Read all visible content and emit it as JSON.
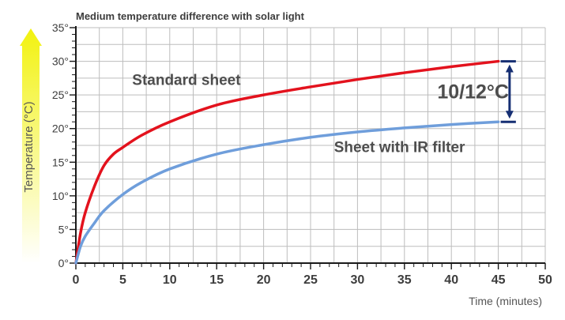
{
  "colors": {
    "standard_series": "#e3121d",
    "ir_series": "#6f9edb",
    "grid": "#bdbdbd",
    "axis": "#1a1a1a",
    "tick_text": "#3d3d3d",
    "annotation_text": "#4d4d4d",
    "difference_arrow": "#162f73",
    "gradient_top": "#f2f20f",
    "gradient_bottom": "#ffffff"
  },
  "chart_data": {
    "type": "line",
    "title": "Medium  temperature difference with solar light",
    "xlabel": "Time (minutes)",
    "ylabel": "Temperature (°C)",
    "xlim": [
      0,
      50
    ],
    "ylim": [
      0,
      35
    ],
    "grid": true,
    "x_ticks": [
      {
        "value": 0,
        "label": "0"
      },
      {
        "value": 5,
        "label": "5"
      },
      {
        "value": 10,
        "label": "10"
      },
      {
        "value": 15,
        "label": "15"
      },
      {
        "value": 20,
        "label": "20"
      },
      {
        "value": 25,
        "label": "25"
      },
      {
        "value": 30,
        "label": "30"
      },
      {
        "value": 35,
        "label": "35"
      },
      {
        "value": 40,
        "label": "40"
      },
      {
        "value": 45,
        "label": "45"
      },
      {
        "value": 50,
        "label": "50"
      }
    ],
    "y_ticks": [
      {
        "value": 0,
        "label": "0°"
      },
      {
        "value": 5,
        "label": "5°"
      },
      {
        "value": 10,
        "label": "10°"
      },
      {
        "value": 15,
        "label": "15°"
      },
      {
        "value": 20,
        "label": "20°"
      },
      {
        "value": 25,
        "label": "25°"
      },
      {
        "value": 30,
        "label": "30°"
      },
      {
        "value": 35,
        "label": "35°"
      }
    ],
    "series": [
      {
        "name": "Standard sheet",
        "color": "#e3121d",
        "x": [
          0,
          0.5,
          1,
          2,
          3,
          4,
          5,
          7,
          10,
          15,
          20,
          25,
          30,
          35,
          40,
          45
        ],
        "y": [
          0,
          4.5,
          7.5,
          11.5,
          14.5,
          16.2,
          17.2,
          19,
          21,
          23.5,
          25,
          26.2,
          27.3,
          28.3,
          29.2,
          30
        ]
      },
      {
        "name": "Sheet with IR filter",
        "color": "#6f9edb",
        "x": [
          0,
          0.5,
          1,
          2,
          3,
          5,
          7,
          10,
          15,
          20,
          25,
          30,
          35,
          40,
          45
        ],
        "y": [
          0,
          2.5,
          4,
          6,
          7.8,
          10.2,
          12,
          14,
          16.2,
          17.6,
          18.7,
          19.5,
          20.1,
          20.6,
          21
        ]
      }
    ],
    "annotations": [
      {
        "text": "Standard sheet",
        "x": 6,
        "y": 26.5,
        "color": "#4d4d4d"
      },
      {
        "text": "Sheet with IR filter",
        "x": 27.5,
        "y": 16.5,
        "color": "#4d4d4d"
      },
      {
        "text": "10/12°C",
        "x": 38.5,
        "y": 24.5,
        "color": "#4d4d4d"
      }
    ],
    "difference_arrow": {
      "x": 46.2,
      "y_low": 21,
      "y_high": 30
    }
  }
}
